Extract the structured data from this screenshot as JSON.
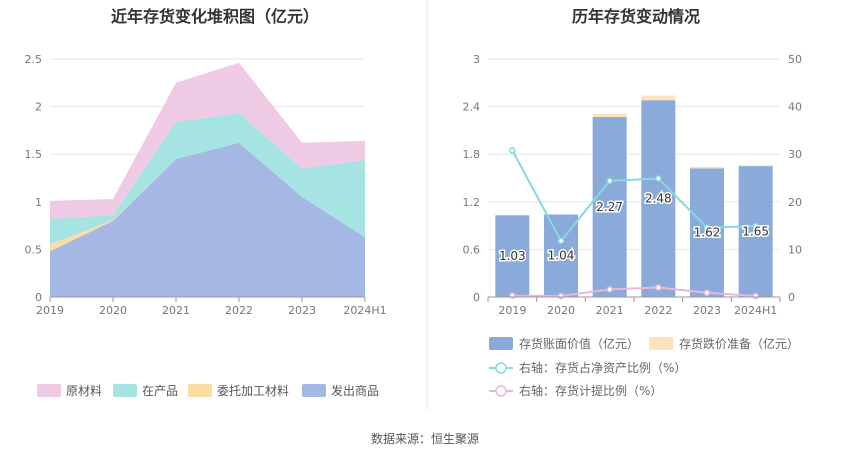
{
  "source": "数据来源：恒生聚源",
  "chart_data": [
    {
      "type": "area",
      "stacked": true,
      "title": "近年存货变化堆积图（亿元）",
      "categories": [
        "2019",
        "2020",
        "2021",
        "2022",
        "2023",
        "2024H1"
      ],
      "y_ticks": [
        "0",
        "0.5",
        "1",
        "1.5",
        "2",
        "2.5"
      ],
      "ylim": [
        0,
        2.5
      ],
      "legend_position": "bottom",
      "series": [
        {
          "name": "发出商品",
          "color": "#a5b8e3",
          "values": [
            0.48,
            0.8,
            1.45,
            1.62,
            1.05,
            0.63
          ]
        },
        {
          "name": "委托加工材料",
          "color": "#fbdca3",
          "values": [
            0.07,
            0.01,
            0.0,
            0.0,
            0.0,
            0.0
          ]
        },
        {
          "name": "在产品",
          "color": "#a6e3e3",
          "values": [
            0.27,
            0.05,
            0.39,
            0.31,
            0.3,
            0.81
          ]
        },
        {
          "name": "原材料",
          "color": "#eecae5",
          "values": [
            0.19,
            0.17,
            0.41,
            0.53,
            0.27,
            0.2
          ]
        }
      ]
    },
    {
      "type": "bar",
      "stacked": true,
      "title": "历年存货变动情况",
      "categories": [
        "2019",
        "2020",
        "2021",
        "2022",
        "2023",
        "2024H1"
      ],
      "y_left_ticks": [
        "0",
        "0.6",
        "1.2",
        "1.8",
        "2.4",
        "3"
      ],
      "y_right_ticks": [
        "0",
        "10",
        "20",
        "30",
        "40",
        "50"
      ],
      "ylim_left": [
        0,
        3
      ],
      "ylim_right": [
        0,
        50
      ],
      "legend_position": "bottom",
      "bars": [
        {
          "name": "存货账面价值（亿元）",
          "color": "#8aaad9",
          "values": [
            1.03,
            1.04,
            2.27,
            2.48,
            1.62,
            1.65
          ],
          "labels": [
            "1.03",
            "1.04",
            "2.27",
            "2.48",
            "1.62",
            "1.65"
          ]
        },
        {
          "name": "存货跌价准备（亿元）",
          "color": "#fbe3bd",
          "values": [
            0.0,
            0.0,
            0.04,
            0.06,
            0.02,
            0.01
          ]
        }
      ],
      "lines": [
        {
          "name": "右轴：存货占净资产比例（%）",
          "color": "#86d9e0",
          "values": [
            30.8,
            11.8,
            24.4,
            24.9,
            14.6,
            14.9
          ]
        },
        {
          "name": "右轴：存货计提比例（%）",
          "color": "#e6b8dc",
          "values": [
            0.3,
            0.2,
            1.6,
            2.0,
            0.9,
            0.2
          ]
        }
      ]
    }
  ]
}
